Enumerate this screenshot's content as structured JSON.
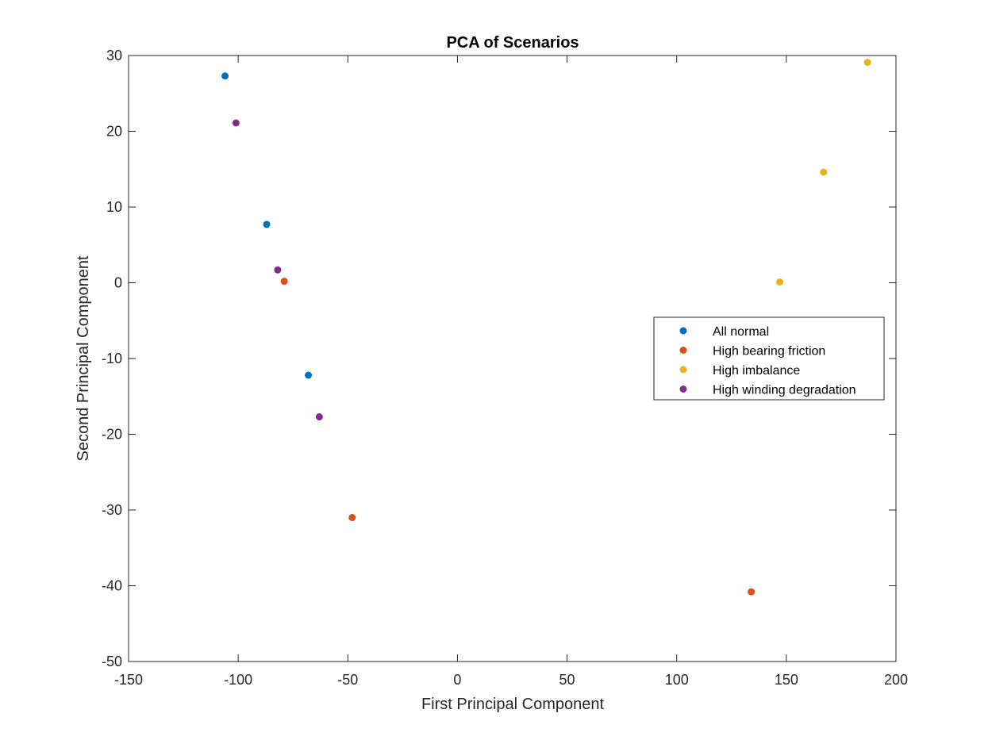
{
  "chart_data": {
    "type": "scatter",
    "title": "PCA of Scenarios",
    "xlabel": "First Principal Component",
    "ylabel": "Second Principal Component",
    "xlim": [
      -150,
      200
    ],
    "ylim": [
      -50,
      30
    ],
    "xticks": [
      -150,
      -100,
      -50,
      0,
      50,
      100,
      150,
      200
    ],
    "yticks": [
      30,
      20,
      10,
      0,
      -10,
      -20,
      -30,
      -40,
      -50
    ],
    "xtick_labels": [
      "-150",
      "-100",
      "-50",
      "0",
      "50",
      "100",
      "150",
      "200"
    ],
    "ytick_labels": [
      "30",
      "20",
      "10",
      "0",
      "-10",
      "-20",
      "-30",
      "-40",
      "-50"
    ],
    "grid": false,
    "legend_position": "right",
    "series": [
      {
        "name": "All normal",
        "color": "#0072BD",
        "points": [
          [
            -106,
            27.3
          ],
          [
            -87,
            7.7
          ],
          [
            -68,
            -12.2
          ]
        ]
      },
      {
        "name": "High bearing friction",
        "color": "#D95319",
        "points": [
          [
            -79,
            0.2
          ],
          [
            -48,
            -31.0
          ],
          [
            134,
            -40.8
          ]
        ]
      },
      {
        "name": "High imbalance",
        "color": "#EDB120",
        "points": [
          [
            147,
            0.1
          ],
          [
            167,
            14.6
          ],
          [
            187,
            29.1
          ]
        ]
      },
      {
        "name": "High winding degradation",
        "color": "#7E2F8E",
        "points": [
          [
            -101,
            21.1
          ],
          [
            -82,
            1.7
          ],
          [
            -63,
            -17.7
          ]
        ]
      }
    ]
  }
}
